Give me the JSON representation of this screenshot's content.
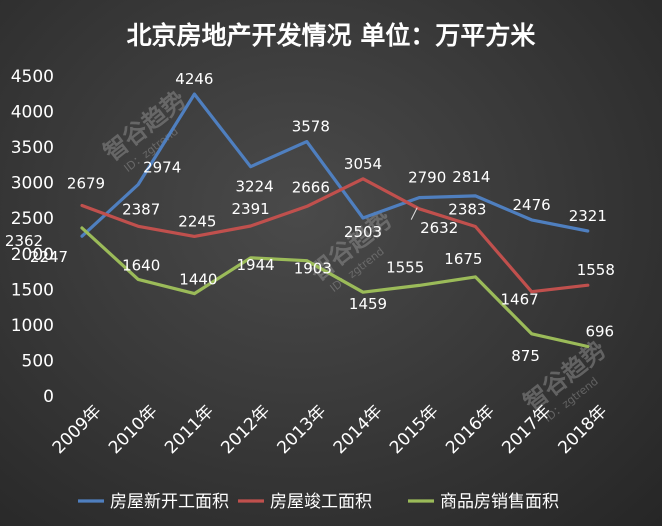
{
  "chart_data": {
    "type": "line",
    "title": "北京房地产开发情况 单位：万平方米",
    "categories": [
      "2009年",
      "2010年",
      "2011年",
      "2012年",
      "2013年",
      "2014年",
      "2015年",
      "2016年",
      "2017年",
      "2018年"
    ],
    "ylim": [
      0,
      4500
    ],
    "yticks": [
      0,
      500,
      1000,
      1500,
      2000,
      2500,
      3000,
      3500,
      4000,
      4500
    ],
    "grid": false,
    "legend_position": "bottom",
    "series": [
      {
        "name": "房屋新开工面积",
        "color": "#4f7fbf",
        "values": [
          2247,
          2974,
          4246,
          3224,
          3578,
          2503,
          2790,
          2814,
          2476,
          2321
        ]
      },
      {
        "name": "房屋竣工面积",
        "color": "#c0504d",
        "values": [
          2679,
          2387,
          2245,
          2391,
          2666,
          3054,
          2632,
          2383,
          1467,
          1558
        ]
      },
      {
        "name": "商品房销售面积",
        "color": "#9bbb59",
        "values": [
          2362,
          1640,
          1440,
          1944,
          1903,
          1459,
          1555,
          1675,
          875,
          696
        ]
      }
    ]
  },
  "watermark": {
    "text": "智谷趋势",
    "sub": "ID：zgtrend"
  }
}
